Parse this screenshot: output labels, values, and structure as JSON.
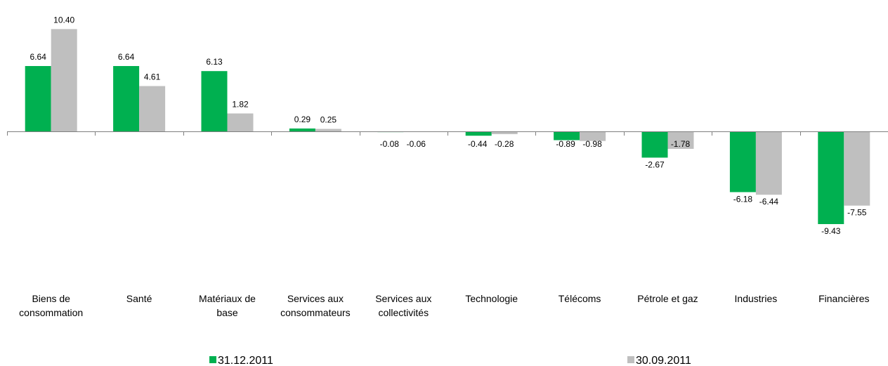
{
  "chart_data": {
    "type": "bar",
    "title": "",
    "xlabel": "",
    "ylabel": "",
    "ylim": [
      -10,
      11
    ],
    "grid": false,
    "legend_position": "bottom",
    "categories": [
      "Biens de consommation",
      "Santé",
      "Matériaux de base",
      "Services aux consommateurs",
      "Services aux collectivités",
      "Technologie",
      "Télécoms",
      "Pétrole et gaz",
      "Industries",
      "Financières"
    ],
    "category_lines": [
      [
        "Biens de",
        "consommation"
      ],
      [
        "Santé"
      ],
      [
        "Matériaux de",
        "base"
      ],
      [
        "Services aux",
        "consommateurs"
      ],
      [
        "Services aux",
        "collectivités"
      ],
      [
        "Technologie"
      ],
      [
        "Télécoms"
      ],
      [
        "Pétrole et gaz"
      ],
      [
        "Industries"
      ],
      [
        "Financières"
      ]
    ],
    "series": [
      {
        "name": "31.12.2011",
        "color": "#00b050",
        "values": [
          6.64,
          6.64,
          6.13,
          0.29,
          -0.08,
          -0.44,
          -0.89,
          -2.67,
          -6.18,
          -9.43
        ],
        "labels": [
          "6.64",
          "6.64",
          "6.13",
          "0.29",
          "-0.08",
          "-0.44",
          "-0.89",
          "-2.67",
          "-6.18",
          "-9.43"
        ]
      },
      {
        "name": "30.09.2011",
        "color": "#bfbfbf",
        "values": [
          10.4,
          4.61,
          1.82,
          0.25,
          -0.06,
          -0.28,
          -0.98,
          -1.78,
          -6.44,
          -7.55
        ],
        "labels": [
          "10.40",
          "4.61",
          "1.82",
          "0.25",
          "-0.06",
          "-0.28",
          "-0.98",
          "-1.78",
          "-6.44",
          "-7.55"
        ]
      }
    ]
  }
}
